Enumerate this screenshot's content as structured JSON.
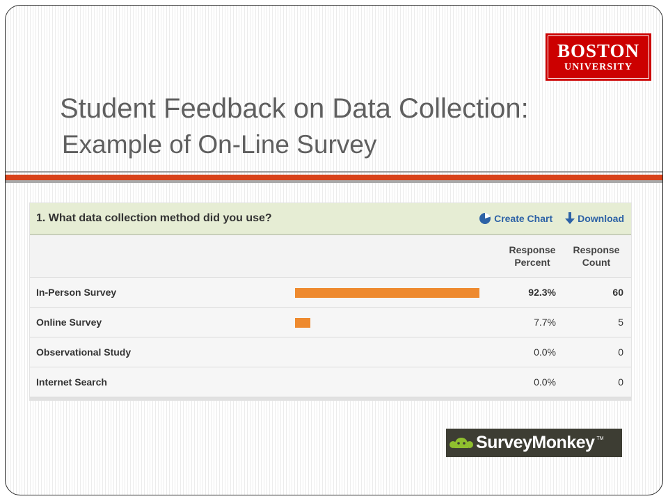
{
  "slide": {
    "title_line1": "Student Feedback on Data Collection:",
    "title_line2": "Example of On-Line Survey",
    "logo_top_line1": "BOSTON",
    "logo_top_line2": "UNIVERSITY",
    "logo_bottom_text": "SurveyMonkey",
    "logo_bottom_tm": "TM",
    "colors": {
      "title": "#5f5f5f",
      "rule_accent": "#d8421a",
      "bu_red": "#cc0000",
      "bar": "#ee8a2f"
    }
  },
  "survey": {
    "question": "1. What data collection method did you use?",
    "actions": [
      {
        "label": "Create Chart",
        "icon": "pie-chart-icon"
      },
      {
        "label": "Download",
        "icon": "download-arrow-icon"
      }
    ],
    "col_percent_line1": "Response",
    "col_percent_line2": "Percent",
    "col_count_line1": "Response",
    "col_count_line2": "Count",
    "rows": [
      {
        "label": "In-Person Survey",
        "percent_text": "92.3%",
        "count": "60",
        "fraction": 0.923
      },
      {
        "label": "Online Survey",
        "percent_text": "7.7%",
        "count": "5",
        "fraction": 0.077
      },
      {
        "label": "Observational Study",
        "percent_text": "0.0%",
        "count": "0",
        "fraction": 0.0
      },
      {
        "label": "Internet Search",
        "percent_text": "0.0%",
        "count": "0",
        "fraction": 0.0
      }
    ]
  }
}
